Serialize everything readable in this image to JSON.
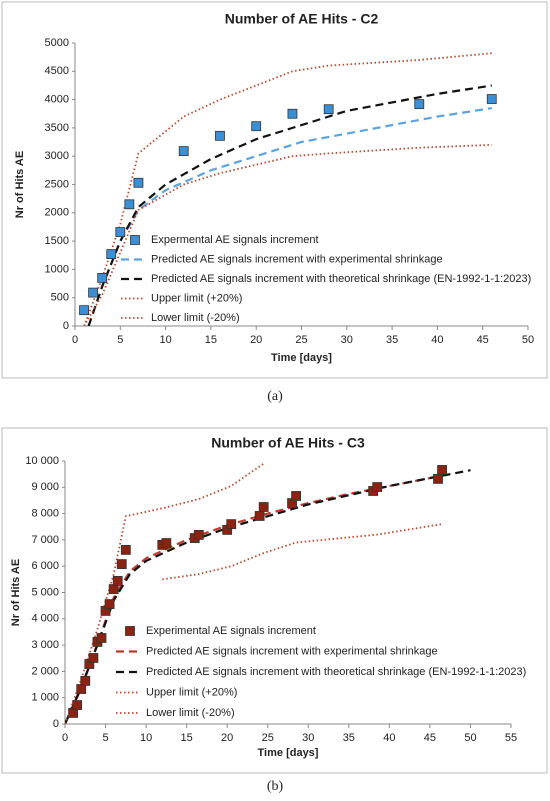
{
  "chart_data": [
    {
      "type": "scatter",
      "title": "Number of AE Hits - C2",
      "x_label": "Time [days]",
      "y_label": "Nr of Hits AE",
      "caption": "(a)",
      "xlim": [
        0,
        50
      ],
      "xticks": [
        0,
        5,
        10,
        15,
        20,
        25,
        30,
        35,
        40,
        45,
        50
      ],
      "ylim": [
        0,
        5000
      ],
      "yticks": [
        0,
        500,
        1000,
        1500,
        2000,
        2500,
        3000,
        3500,
        4000,
        4500,
        5000
      ],
      "grid": false,
      "series": [
        {
          "name": "Expermental AE signals increment",
          "style": "marker",
          "color": "#3b8fd6",
          "x": [
            1,
            2,
            3,
            4,
            5,
            6,
            7,
            12,
            16,
            20,
            24,
            28,
            38,
            46
          ],
          "values": [
            280,
            590,
            850,
            1270,
            1660,
            2150,
            2530,
            3090,
            3360,
            3530,
            3750,
            3830,
            3920,
            4010
          ]
        },
        {
          "name": "Predicted AE signals increment with experimental shrinkage",
          "style": "dashed",
          "color": "#5ba3e0",
          "x": [
            1.5,
            3,
            5,
            7,
            10,
            15,
            20,
            25,
            30,
            35,
            40,
            46
          ],
          "values": [
            0,
            700,
            1500,
            2050,
            2400,
            2750,
            3000,
            3250,
            3400,
            3550,
            3700,
            3850
          ]
        },
        {
          "name": "Predicted AE signals increment with theoretical shrinkage (EN-1992-1-1:2023)",
          "style": "dashed",
          "color": "#111111",
          "x": [
            1.5,
            3,
            5,
            7,
            10,
            15,
            20,
            25,
            30,
            35,
            40,
            46
          ],
          "values": [
            0,
            700,
            1500,
            2100,
            2500,
            2950,
            3300,
            3550,
            3800,
            3950,
            4100,
            4250
          ]
        },
        {
          "name": "Upper limit (+20%)",
          "style": "dotted",
          "color": "#c0452a",
          "x": [
            1,
            3,
            5,
            7,
            12,
            16,
            20,
            24,
            28,
            38,
            46
          ],
          "values": [
            0,
            850,
            1800,
            3050,
            3700,
            4000,
            4250,
            4500,
            4600,
            4700,
            4820
          ]
        },
        {
          "name": "Lower limit (-20%)",
          "style": "dotted",
          "color": "#c0452a",
          "x": [
            1,
            3,
            5,
            7,
            12,
            16,
            20,
            24,
            28,
            38,
            46
          ],
          "values": [
            0,
            550,
            1300,
            2050,
            2500,
            2700,
            2850,
            3000,
            3050,
            3150,
            3200
          ]
        }
      ]
    },
    {
      "type": "scatter",
      "title": "Number of AE Hits - C3",
      "x_label": "Time [days]",
      "y_label": "Nr of Hits AE",
      "caption": "(b)",
      "xlim": [
        0,
        55
      ],
      "xticks": [
        0,
        5,
        10,
        15,
        20,
        25,
        30,
        35,
        40,
        45,
        50,
        55
      ],
      "ylim": [
        0,
        10000
      ],
      "yticks": [
        0,
        {
          "value": 1000,
          "label": "1 000"
        },
        {
          "value": 2000,
          "label": "2 000"
        },
        {
          "value": 3000,
          "label": "3 000"
        },
        {
          "value": 4000,
          "label": "4 000"
        },
        {
          "value": 5000,
          "label": "5 000"
        },
        {
          "value": 6000,
          "label": "6 000"
        },
        {
          "value": 7000,
          "label": "7 000"
        },
        {
          "value": 8000,
          "label": "8 000"
        },
        {
          "value": 9000,
          "label": "9 000"
        },
        {
          "value": 10000,
          "label": "10 000"
        }
      ],
      "grid": false,
      "series": [
        {
          "name": "Experimental AE signals increment",
          "style": "marker",
          "color": "#8b2212",
          "x": [
            1,
            1.5,
            2,
            2.5,
            3,
            3.5,
            4,
            4.5,
            5,
            5.5,
            6,
            6.5,
            7,
            7.5,
            12,
            12.5,
            16,
            16.5,
            20,
            20.5,
            24,
            24.5,
            28,
            28.5,
            38,
            38.5,
            46,
            46.5
          ],
          "values": [
            420,
            720,
            1330,
            1640,
            2280,
            2510,
            3120,
            3270,
            4300,
            4560,
            5130,
            5440,
            6080,
            6620,
            6810,
            6880,
            7070,
            7190,
            7380,
            7600,
            7910,
            8250,
            8400,
            8670,
            8860,
            9010,
            9320,
            9660
          ]
        },
        {
          "name": "Predicted AE signals increment with experimental shrinkage",
          "style": "dashed",
          "color": "#c0392b",
          "x": [
            0,
            2,
            4,
            6,
            8,
            10,
            15,
            20,
            25,
            30,
            35,
            40,
            45,
            47
          ],
          "values": [
            0,
            1350,
            3050,
            4800,
            5800,
            6300,
            7000,
            7550,
            8000,
            8400,
            8750,
            9050,
            9350,
            9500
          ]
        },
        {
          "name": "Predicted AE signals increment with theoretical shrinkage (EN-1992-1-1:2023)",
          "style": "dashed",
          "color": "#111111",
          "x": [
            0,
            2,
            4,
            6,
            8,
            10,
            15,
            20,
            25,
            30,
            35,
            40,
            45,
            50
          ],
          "values": [
            0,
            1400,
            3000,
            4700,
            5700,
            6200,
            6900,
            7450,
            7900,
            8350,
            8700,
            9050,
            9350,
            9650
          ]
        },
        {
          "name": "Upper limit (+20%)",
          "style": "dotted",
          "color": "#c0452a",
          "x": [
            0,
            2,
            4,
            6,
            7.5,
            12,
            16.5,
            20.5,
            24.5
          ],
          "values": [
            0,
            1700,
            3600,
            5700,
            7900,
            8200,
            8550,
            9050,
            9900
          ]
        },
        {
          "name": "Lower limit (-20%)",
          "style": "dotted",
          "color": "#c0452a",
          "x": [
            12,
            16.5,
            20.5,
            24.5,
            28.5,
            38.5,
            46.5
          ],
          "values": [
            5500,
            5700,
            6000,
            6500,
            6900,
            7200,
            7600
          ]
        }
      ]
    }
  ]
}
